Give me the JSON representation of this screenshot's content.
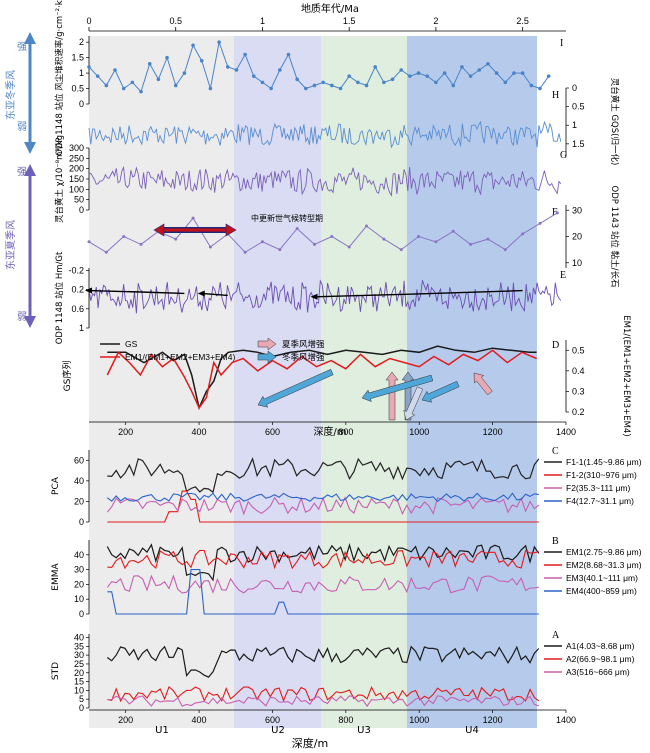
{
  "figure": {
    "top_axis_title": "地质年代/Ma",
    "top_ticks": [
      "0",
      "0.5",
      "1",
      "1.5",
      "2",
      "2.5"
    ],
    "depth_ticks": [
      "200",
      "400",
      "600",
      "800",
      "1000",
      "1200",
      "1400"
    ],
    "mid_depth_title": "深度/m",
    "bottom_depth_title": "深度/m",
    "units": [
      "U1",
      "U2",
      "U3",
      "U4"
    ],
    "unit_colors": [
      "#ececec",
      "#d9dcf2",
      "#dfeedf",
      "#b6cbec"
    ],
    "left_arrows": {
      "winter_label": "东亚冬季风",
      "summer_label": "东亚夏季风",
      "strong": "强",
      "weak": "弱",
      "winter_color": "#4f86c6",
      "summer_color": "#6c60b8"
    },
    "mpt_label": "中更新世气候转型期",
    "mpt_color": "#c0121d"
  },
  "chart_data": [
    {
      "type": "line",
      "panel": "I",
      "ylabel": "ODP 1148 站位 风尘堆积速率/g·cm⁻²·kyr⁻¹",
      "yticks": [
        "0",
        "0.5",
        "1",
        "1.5",
        "2"
      ],
      "ylim": [
        0,
        2.2
      ],
      "xunit": "Ma",
      "color": "#4a84c8",
      "x": [
        0.0,
        0.05,
        0.1,
        0.15,
        0.2,
        0.25,
        0.3,
        0.35,
        0.4,
        0.45,
        0.5,
        0.55,
        0.6,
        0.65,
        0.7,
        0.75,
        0.8,
        0.85,
        0.9,
        0.95,
        1.0,
        1.05,
        1.1,
        1.15,
        1.2,
        1.25,
        1.3,
        1.35,
        1.4,
        1.45,
        1.5,
        1.55,
        1.6,
        1.65,
        1.7,
        1.75,
        1.8,
        1.85,
        1.9,
        1.95,
        2.0,
        2.05,
        2.1,
        2.15,
        2.2,
        2.25,
        2.3,
        2.35,
        2.4,
        2.45,
        2.5,
        2.55,
        2.6,
        2.65
      ],
      "values": [
        1.2,
        0.9,
        0.6,
        1.1,
        0.5,
        0.7,
        0.4,
        1.3,
        0.8,
        1.5,
        0.6,
        1.0,
        1.9,
        1.4,
        0.5,
        2.0,
        1.2,
        1.1,
        1.6,
        0.9,
        0.7,
        0.5,
        1.1,
        1.6,
        0.8,
        0.5,
        0.6,
        0.7,
        0.6,
        0.5,
        0.9,
        0.7,
        0.6,
        1.2,
        0.7,
        0.8,
        1.1,
        0.9,
        1.0,
        0.9,
        0.7,
        1.0,
        0.6,
        1.2,
        0.9,
        1.1,
        1.3,
        1.0,
        0.7,
        1.0,
        1.0,
        0.6,
        0.5,
        0.9
      ]
    },
    {
      "type": "line",
      "panel": "H",
      "ylabel": "灵台黄土 GQS(归一化)",
      "yticks": [
        "0",
        "0.5",
        "1",
        "1.5"
      ],
      "ylim": [
        0,
        1.8
      ],
      "xunit": "Ma",
      "color": "#5b8ed0",
      "noisy": true,
      "mean": 1.25,
      "amp": 0.35,
      "inverted": true
    },
    {
      "type": "line",
      "panel": "G",
      "ylabel": "灵台黄土 χ/10⁻⁸m³/kg",
      "yticks": [
        "0",
        "50",
        "100",
        "150",
        "200",
        "250",
        "300"
      ],
      "ylim": [
        0,
        300
      ],
      "xunit": "Ma",
      "color": "#7b61b8",
      "noisy": true,
      "mean": 140,
      "amp": 70
    },
    {
      "type": "line",
      "panel": "F",
      "ylabel": "ODP 1143 站位 黏土/长石",
      "yticks": [
        "10",
        "20",
        "30"
      ],
      "ylim": [
        8,
        32
      ],
      "xunit": "Ma",
      "color": "#8a75c4",
      "x": [
        0.0,
        0.1,
        0.2,
        0.3,
        0.4,
        0.5,
        0.6,
        0.7,
        0.8,
        0.9,
        1.0,
        1.1,
        1.2,
        1.3,
        1.4,
        1.5,
        1.6,
        1.7,
        1.8,
        1.9,
        2.0,
        2.1,
        2.2,
        2.3,
        2.4,
        2.5,
        2.6,
        2.7
      ],
      "values": [
        18,
        14,
        20,
        17,
        22,
        19,
        27,
        16,
        21,
        14,
        18,
        15,
        23,
        17,
        20,
        16,
        24,
        19,
        15,
        20,
        18,
        22,
        17,
        19,
        15,
        21,
        25,
        29
      ]
    },
    {
      "type": "line",
      "panel": "E",
      "ylabel": "ODP 1148 站位 Hm/Gt",
      "yticks": [
        "-0.2",
        "0.2",
        "0.6",
        "1"
      ],
      "ylim": [
        -0.25,
        1.0
      ],
      "xunit": "Ma",
      "color": "#6a4fb0",
      "noisy": true,
      "mean": 0.35,
      "amp": 0.35,
      "trend": [
        {
          "x": [
            0.0,
            0.3,
            0.55
          ],
          "values": [
            0.22,
            0.25,
            0.28
          ]
        },
        {
          "x": [
            0.65,
            0.8
          ],
          "values": [
            0.28,
            0.32
          ]
        },
        {
          "x": [
            1.3,
            1.8,
            2.5
          ],
          "values": [
            0.35,
            0.3,
            0.22
          ]
        }
      ]
    },
    {
      "type": "line",
      "panel": "D",
      "legend": [
        "GS",
        "EM1/(EM1+EM2+EM3+EM4)",
        "夏季风增强",
        "冬季风增强"
      ],
      "ylabel_left": "GS序列",
      "ylabel_right": "EM1/(EM1+EM2+EM3+EM4)",
      "yticks_right": [
        "0.2",
        "0.3",
        "0.4",
        "0.5"
      ],
      "ylim_right": [
        0.2,
        0.55
      ],
      "xunit": "m",
      "series": [
        {
          "name": "GS",
          "color": "#1a1a1a",
          "x": [
            150,
            200,
            250,
            300,
            330,
            360,
            380,
            400,
            420,
            440,
            460,
            480,
            520,
            560,
            600,
            650,
            700,
            750,
            800,
            850,
            900,
            950,
            1000,
            1050,
            1100,
            1150,
            1200,
            1250,
            1300,
            1320
          ],
          "values": [
            0.49,
            0.49,
            0.44,
            0.49,
            0.45,
            0.48,
            0.38,
            0.22,
            0.3,
            0.35,
            0.46,
            0.49,
            0.5,
            0.49,
            0.47,
            0.49,
            0.5,
            0.48,
            0.5,
            0.49,
            0.48,
            0.5,
            0.49,
            0.52,
            0.5,
            0.49,
            0.51,
            0.5,
            0.49,
            0.49
          ]
        },
        {
          "name": "EM1/(EM1+EM2+EM3+EM4)",
          "color": "#e31a1c",
          "x": [
            150,
            180,
            210,
            240,
            270,
            300,
            330,
            360,
            380,
            400,
            420,
            440,
            460,
            490,
            520,
            560,
            600,
            640,
            680,
            720,
            760,
            800,
            840,
            880,
            920,
            960,
            1000,
            1040,
            1080,
            1120,
            1160,
            1200,
            1240,
            1280,
            1320
          ],
          "values": [
            0.38,
            0.49,
            0.44,
            0.38,
            0.48,
            0.42,
            0.46,
            0.37,
            0.3,
            0.22,
            0.27,
            0.44,
            0.38,
            0.44,
            0.46,
            0.4,
            0.45,
            0.41,
            0.47,
            0.42,
            0.45,
            0.41,
            0.48,
            0.42,
            0.46,
            0.44,
            0.42,
            0.47,
            0.43,
            0.48,
            0.45,
            0.5,
            0.44,
            0.49,
            0.46
          ]
        }
      ]
    },
    {
      "type": "line",
      "panel": "C",
      "ylabel": "PCA",
      "yticks": [
        "0",
        "20",
        "40",
        "60"
      ],
      "ylim": [
        0,
        70
      ],
      "xunit": "m",
      "series": [
        {
          "name": "F1-1(1.45~9.86 μm)",
          "color": "#222222",
          "base": 52,
          "amp": 10
        },
        {
          "name": "F1-2(310~976 μm)",
          "color": "#e31a1c",
          "base": 0,
          "amp": 0,
          "spike": [
            [
              330,
              10
            ],
            [
              360,
              30
            ],
            [
              380,
              22
            ]
          ]
        },
        {
          "name": "F2(35.3~111 μm)",
          "color": "#c65fb2",
          "base": 16,
          "amp": 8
        },
        {
          "name": "F4(12.7~31.1 μm)",
          "color": "#2b63c8",
          "base": 24,
          "amp": 4
        }
      ]
    },
    {
      "type": "line",
      "panel": "B",
      "ylabel": "EMMA",
      "yticks": [
        "0",
        "10",
        "20",
        "30",
        "40"
      ],
      "ylim": [
        0,
        50
      ],
      "xunit": "m",
      "series": [
        {
          "name": "EM1(2.75~9.86 μm)",
          "color": "#1a1a1a",
          "base": 41,
          "amp": 6
        },
        {
          "name": "EM2(8.68~31.3 μm)",
          "color": "#e31a1c",
          "base": 37,
          "amp": 6
        },
        {
          "name": "EM3(40.1~111 μm)",
          "color": "#c65fb2",
          "base": 20,
          "amp": 6
        },
        {
          "name": "EM4(400~859 μm)",
          "color": "#2b63c8",
          "base": 0,
          "amp": 0,
          "spike": [
            [
              150,
              15
            ],
            [
              390,
              30
            ],
            [
              620,
              8
            ]
          ]
        }
      ]
    },
    {
      "type": "line",
      "panel": "A",
      "ylabel": "STD",
      "yticks": [
        "0",
        "5",
        "10",
        "15",
        "20",
        "25",
        "30",
        "35",
        "40"
      ],
      "ylim": [
        0,
        42
      ],
      "xunit": "m",
      "series": [
        {
          "name": "A1(4.03~8.68 μm)",
          "color": "#1a1a1a",
          "base": 30,
          "amp": 5
        },
        {
          "name": "A2(66.9~98.1 μm)",
          "color": "#e31a1c",
          "base": 8,
          "amp": 4
        },
        {
          "name": "A3(516~666 μm)",
          "color": "#c65fb2",
          "base": 4,
          "amp": 3
        }
      ]
    }
  ]
}
